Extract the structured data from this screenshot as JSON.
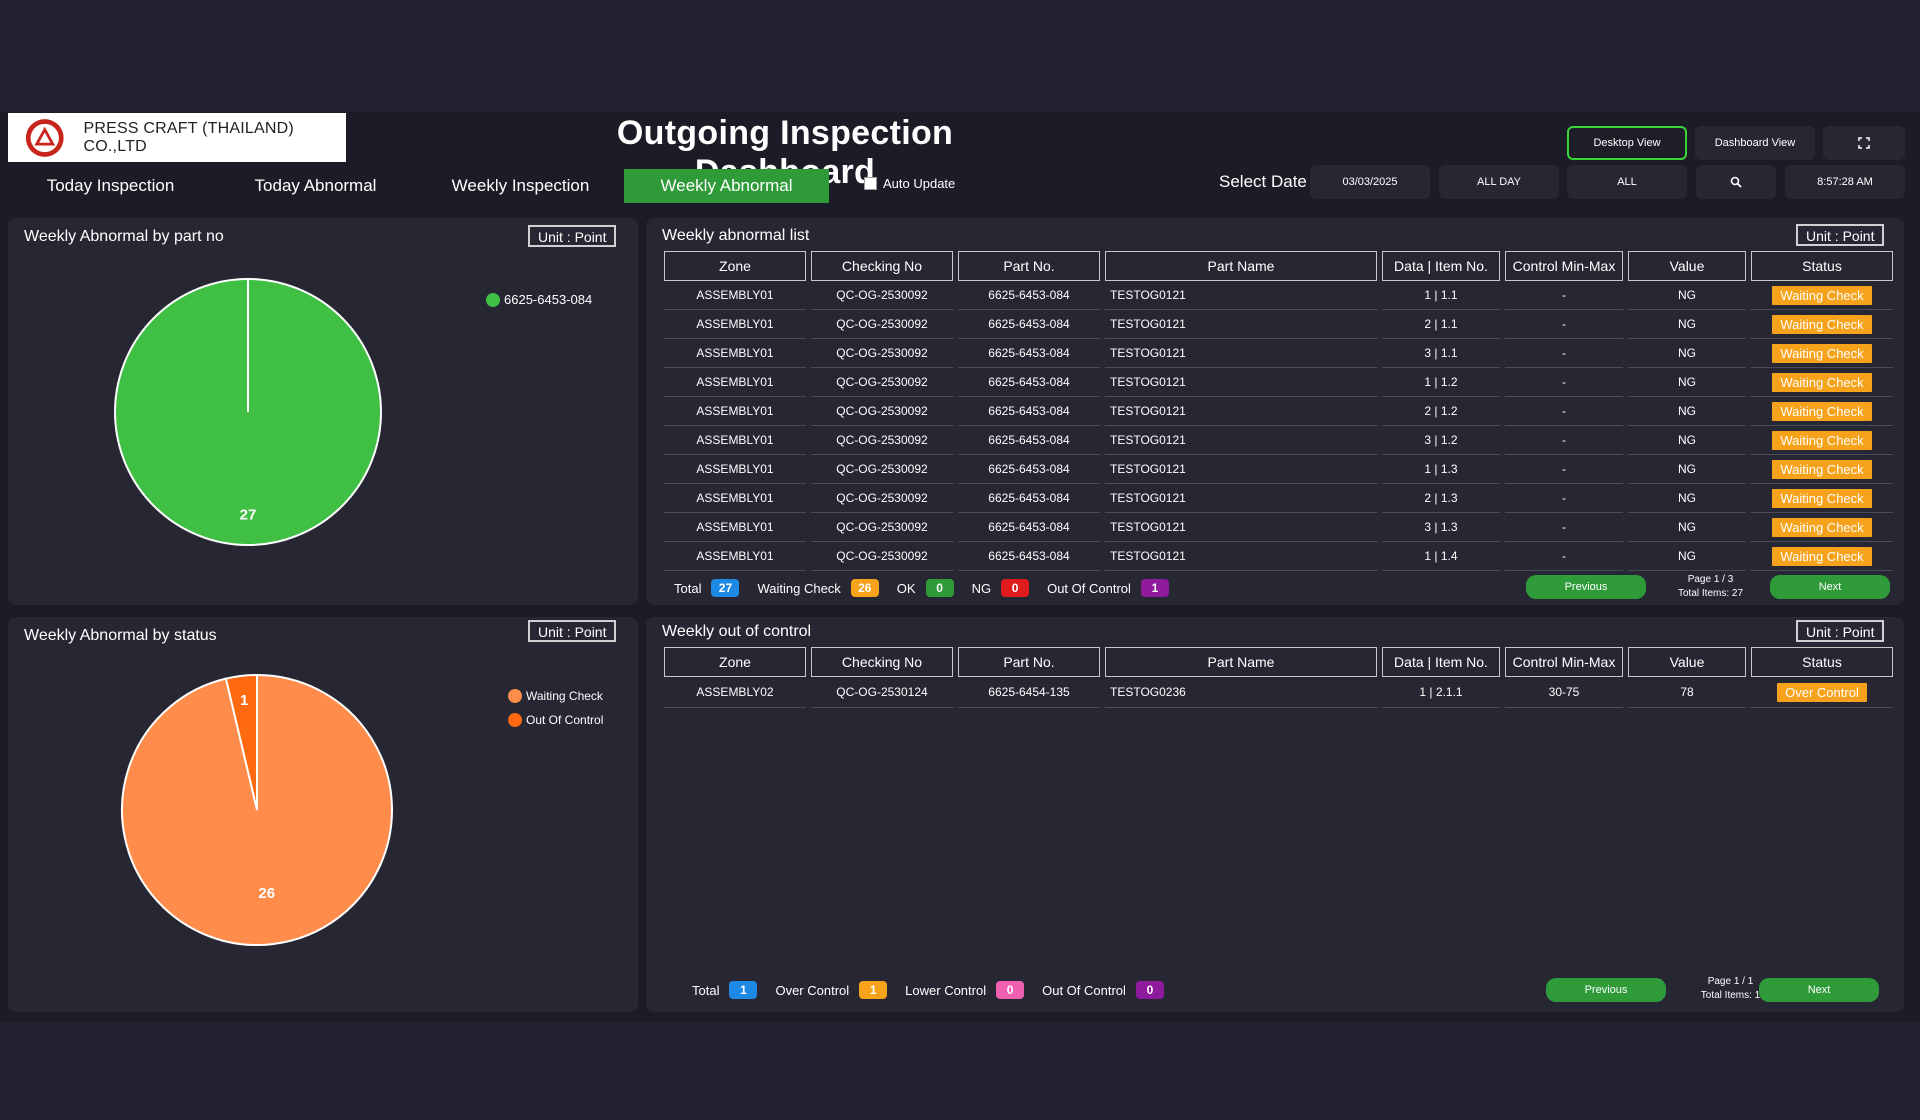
{
  "header": {
    "company": "PRESS CRAFT (THAILAND) CO.,LTD",
    "title": "Outgoing Inspection Dashboard",
    "desktop_view": "Desktop View",
    "dashboard_view": "Dashboard View",
    "fullscreen_icon": "fullscreen-icon"
  },
  "tabs": [
    {
      "label": "Today Inspection",
      "active": false
    },
    {
      "label": "Today Abnormal",
      "active": false
    },
    {
      "label": "Weekly Inspection",
      "active": false
    },
    {
      "label": "Weekly Abnormal",
      "active": true
    }
  ],
  "filters": {
    "auto_update": "Auto Update",
    "select_date": "Select Date",
    "date": "03/03/2025",
    "period": "ALL DAY",
    "zone": "ALL",
    "search_icon": "search-icon",
    "time": "8:57:28 AM"
  },
  "colors": {
    "accent_green": "#2e9b38",
    "pie_green": "#3fbf44",
    "pie_waiting": "#ff8c4a",
    "pie_out_of_control": "#ff6a10",
    "waiting_badge": "#f7a21b"
  },
  "pie_part": {
    "title": "Weekly Abnormal by part no",
    "unit": "Unit : Point",
    "legend": [
      "6625-6453-084"
    ]
  },
  "pie_status": {
    "title": "Weekly Abnormal by status",
    "unit": "Unit : Point",
    "legend": [
      "Waiting Check",
      "Out Of Control"
    ]
  },
  "chart_data": [
    {
      "type": "pie",
      "categories": [
        "6625-6453-084"
      ],
      "values": [
        27
      ],
      "data_labels": [
        "27"
      ],
      "legend": "right"
    },
    {
      "type": "pie",
      "categories": [
        "Waiting Check",
        "Out Of Control"
      ],
      "values": [
        26,
        1
      ],
      "data_labels": [
        "26",
        "1"
      ],
      "legend": "right"
    }
  ],
  "abnormal_list": {
    "title": "Weekly abnormal list",
    "unit": "Unit : Point",
    "columns": [
      "Zone",
      "Checking No",
      "Part No.",
      "Part Name",
      "Data | Item No.",
      "Control Min-Max",
      "Value",
      "Status"
    ],
    "rows": [
      [
        "ASSEMBLY01",
        "QC-OG-2530092",
        "6625-6453-084",
        "TESTOG0121",
        "1 | 1.1",
        "-",
        "NG",
        "Waiting Check"
      ],
      [
        "ASSEMBLY01",
        "QC-OG-2530092",
        "6625-6453-084",
        "TESTOG0121",
        "2 | 1.1",
        "-",
        "NG",
        "Waiting Check"
      ],
      [
        "ASSEMBLY01",
        "QC-OG-2530092",
        "6625-6453-084",
        "TESTOG0121",
        "3 | 1.1",
        "-",
        "NG",
        "Waiting Check"
      ],
      [
        "ASSEMBLY01",
        "QC-OG-2530092",
        "6625-6453-084",
        "TESTOG0121",
        "1 | 1.2",
        "-",
        "NG",
        "Waiting Check"
      ],
      [
        "ASSEMBLY01",
        "QC-OG-2530092",
        "6625-6453-084",
        "TESTOG0121",
        "2 | 1.2",
        "-",
        "NG",
        "Waiting Check"
      ],
      [
        "ASSEMBLY01",
        "QC-OG-2530092",
        "6625-6453-084",
        "TESTOG0121",
        "3 | 1.2",
        "-",
        "NG",
        "Waiting Check"
      ],
      [
        "ASSEMBLY01",
        "QC-OG-2530092",
        "6625-6453-084",
        "TESTOG0121",
        "1 | 1.3",
        "-",
        "NG",
        "Waiting Check"
      ],
      [
        "ASSEMBLY01",
        "QC-OG-2530092",
        "6625-6453-084",
        "TESTOG0121",
        "2 | 1.3",
        "-",
        "NG",
        "Waiting Check"
      ],
      [
        "ASSEMBLY01",
        "QC-OG-2530092",
        "6625-6453-084",
        "TESTOG0121",
        "3 | 1.3",
        "-",
        "NG",
        "Waiting Check"
      ],
      [
        "ASSEMBLY01",
        "QC-OG-2530092",
        "6625-6453-084",
        "TESTOG0121",
        "1 | 1.4",
        "-",
        "NG",
        "Waiting Check"
      ]
    ],
    "summary": [
      {
        "label": "Total",
        "value": "27",
        "color": "#1e88e5"
      },
      {
        "label": "Waiting Check",
        "value": "26",
        "color": "#f7a21b"
      },
      {
        "label": "OK",
        "value": "0",
        "color": "#2e9b38"
      },
      {
        "label": "NG",
        "value": "0",
        "color": "#e01b1b"
      },
      {
        "label": "Out Of Control",
        "value": "1",
        "color": "#8e1a9e"
      }
    ],
    "previous": "Previous",
    "next": "Next",
    "page": "Page 1 / 3",
    "total_items": "Total Items: 27"
  },
  "out_of_control": {
    "title": "Weekly out of control",
    "unit": "Unit : Point",
    "columns": [
      "Zone",
      "Checking No",
      "Part No.",
      "Part Name",
      "Data | Item No.",
      "Control Min-Max",
      "Value",
      "Status"
    ],
    "rows": [
      [
        "ASSEMBLY02",
        "QC-OG-2530124",
        "6625-6454-135",
        "TESTOG0236",
        "1 | 2.1.1",
        "30-75",
        "78",
        "Over Control"
      ]
    ],
    "summary": [
      {
        "label": "Total",
        "value": "1",
        "color": "#1e88e5"
      },
      {
        "label": "Over Control",
        "value": "1",
        "color": "#f7a21b"
      },
      {
        "label": "Lower Control",
        "value": "0",
        "color": "#f060b0"
      },
      {
        "label": "Out Of Control",
        "value": "0",
        "color": "#8e1a9e"
      }
    ],
    "previous": "Previous",
    "next": "Next",
    "page": "Page 1 / 1",
    "total_items": "Total Items: 1"
  }
}
